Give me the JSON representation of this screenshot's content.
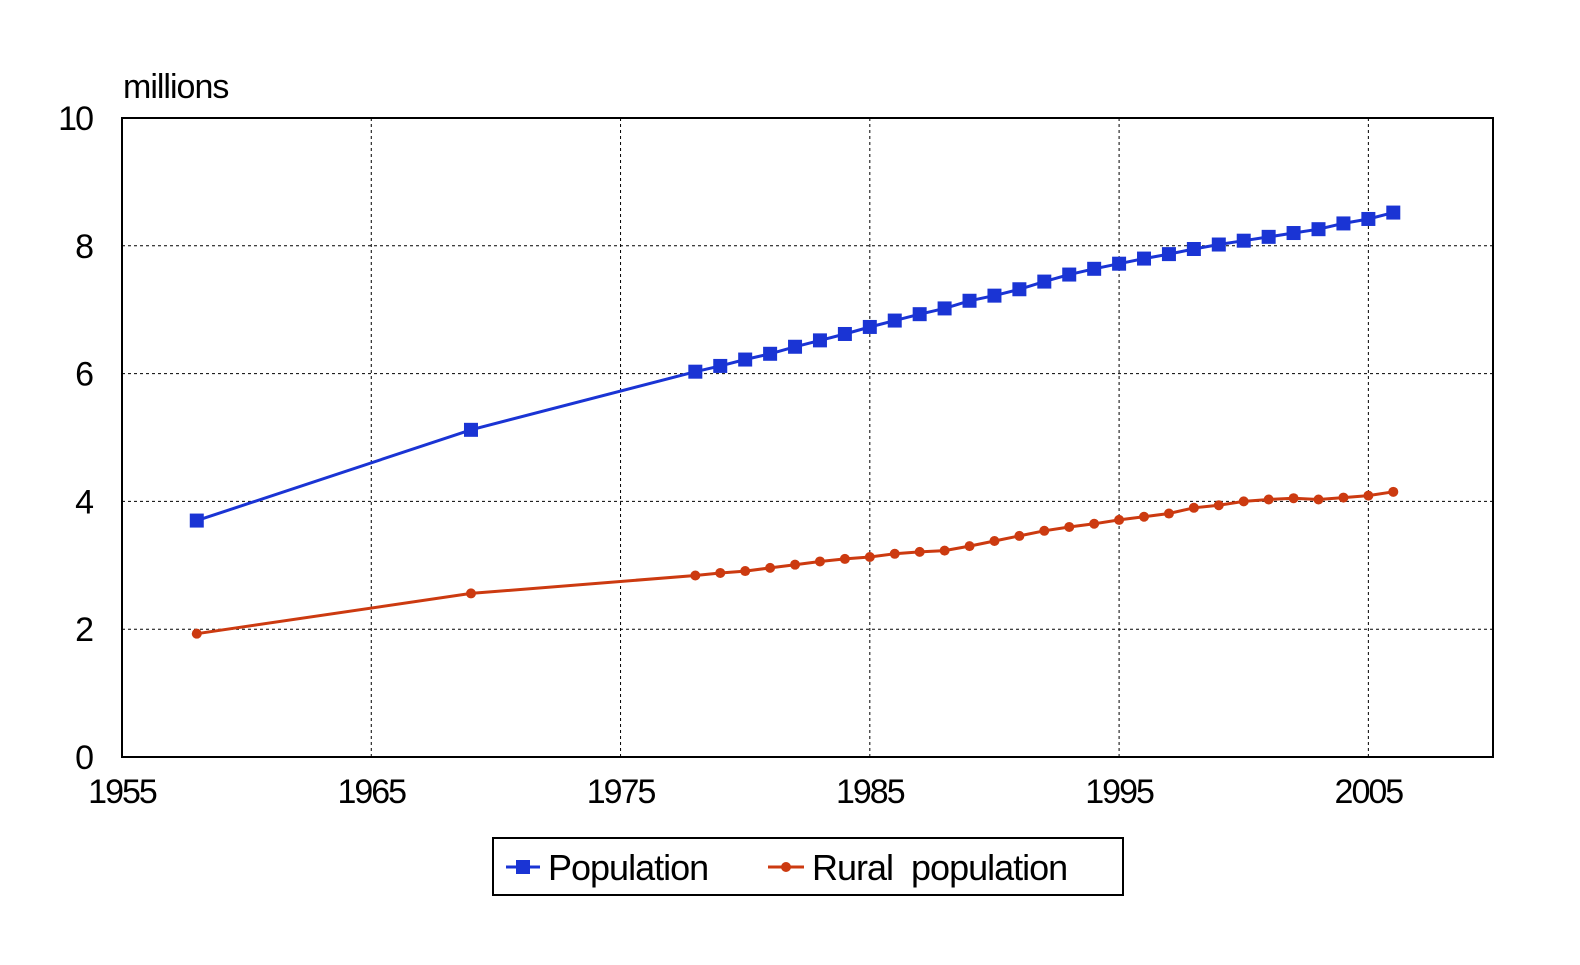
{
  "chart_data": {
    "type": "line",
    "unit_label": "millions",
    "xlim": [
      1955,
      2010
    ],
    "ylim": [
      0,
      10
    ],
    "xticks": [
      1955,
      1965,
      1975,
      1985,
      1995,
      2005
    ],
    "yticks": [
      0,
      2,
      4,
      6,
      8,
      10
    ],
    "grid": true,
    "legend_position": "bottom-center",
    "series": [
      {
        "name": "Population",
        "color": "#1a34d4",
        "marker": "square",
        "x": [
          1958,
          1969,
          1978,
          1979,
          1980,
          1981,
          1982,
          1983,
          1984,
          1985,
          1986,
          1987,
          1988,
          1989,
          1990,
          1991,
          1992,
          1993,
          1994,
          1995,
          1996,
          1997,
          1998,
          1999,
          2000,
          2001,
          2002,
          2003,
          2004,
          2005,
          2006
        ],
        "values": [
          3.7,
          5.12,
          6.03,
          6.12,
          6.22,
          6.31,
          6.42,
          6.52,
          6.62,
          6.73,
          6.83,
          6.93,
          7.02,
          7.14,
          7.22,
          7.32,
          7.44,
          7.55,
          7.64,
          7.72,
          7.8,
          7.87,
          7.95,
          8.02,
          8.08,
          8.14,
          8.2,
          8.26,
          8.35,
          8.42,
          8.52
        ]
      },
      {
        "name": "Rural  population",
        "color": "#cc3a10",
        "marker": "circle",
        "x": [
          1958,
          1969,
          1978,
          1979,
          1980,
          1981,
          1982,
          1983,
          1984,
          1985,
          1986,
          1987,
          1988,
          1989,
          1990,
          1991,
          1992,
          1993,
          1994,
          1995,
          1996,
          1997,
          1998,
          1999,
          2000,
          2001,
          2002,
          2003,
          2004,
          2005,
          2006
        ],
        "values": [
          1.93,
          2.56,
          2.84,
          2.88,
          2.91,
          2.96,
          3.01,
          3.06,
          3.1,
          3.13,
          3.18,
          3.21,
          3.23,
          3.3,
          3.38,
          3.46,
          3.54,
          3.6,
          3.65,
          3.71,
          3.76,
          3.81,
          3.9,
          3.94,
          4.0,
          4.03,
          4.05,
          4.03,
          4.06,
          4.09,
          4.15
        ]
      }
    ]
  }
}
